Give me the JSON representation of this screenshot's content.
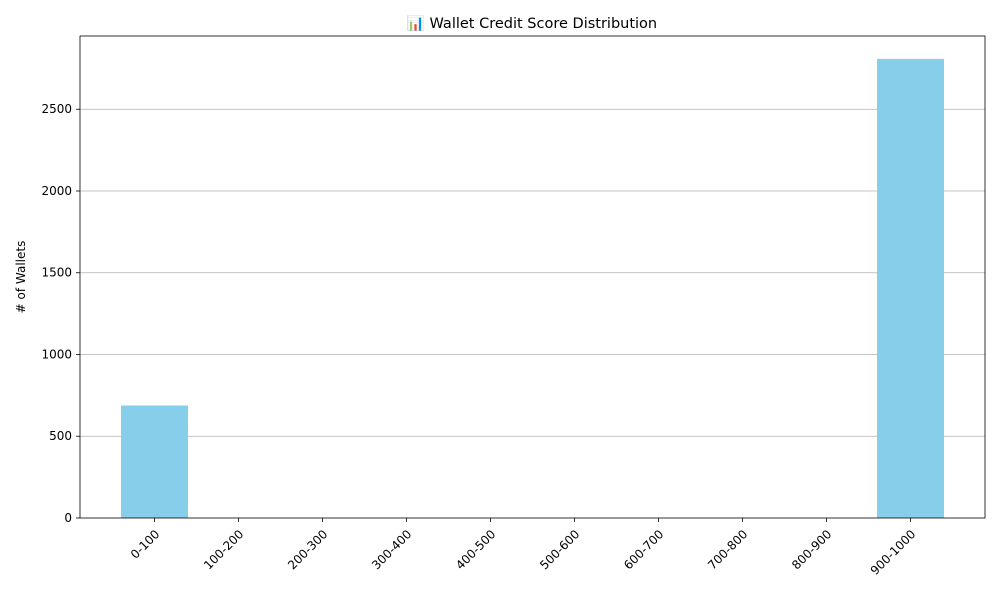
{
  "chart_data": {
    "type": "bar",
    "title": "📊 Wallet Credit Score Distribution",
    "xlabel": "",
    "ylabel": "# of Wallets",
    "categories": [
      "0-100",
      "100-200",
      "200-300",
      "300-400",
      "400-500",
      "500-600",
      "600-700",
      "700-800",
      "800-900",
      "900-1000"
    ],
    "values": [
      688,
      0,
      0,
      0,
      0,
      0,
      0,
      0,
      0,
      2808
    ],
    "ylim": [
      0,
      2948
    ],
    "yticks": [
      0,
      500,
      1000,
      1500,
      2000,
      2500
    ],
    "bar_color": "#87ceeb",
    "grid": "y-axis major",
    "x_tick_rotation": 45
  }
}
